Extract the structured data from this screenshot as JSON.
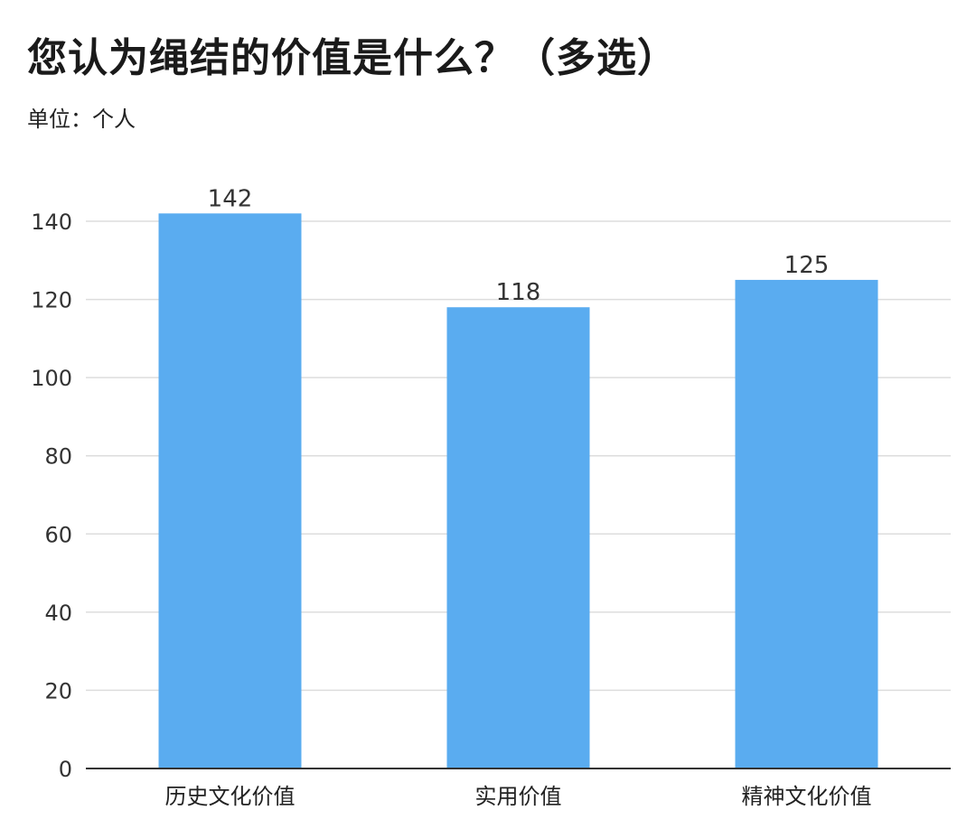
{
  "title": "您认为绳结的价值是什么？（多选）",
  "unit_label": "单位：个人",
  "colors": {
    "bar": "#5aacf0",
    "grid": "#dddddd",
    "axis": "#333333"
  },
  "chart_data": {
    "type": "bar",
    "title": "您认为绳结的价值是什么？（多选）",
    "ylabel": "单位：个人",
    "xlabel": "",
    "categories": [
      "历史文化价值",
      "实用价值",
      "精神文化价值"
    ],
    "values": [
      142,
      118,
      125
    ],
    "data_labels": [
      "142",
      "118",
      "125"
    ],
    "ylim": [
      0,
      140
    ],
    "yticks": [
      0,
      20,
      40,
      60,
      80,
      100,
      120,
      140
    ],
    "grid": true,
    "legend": "none"
  }
}
